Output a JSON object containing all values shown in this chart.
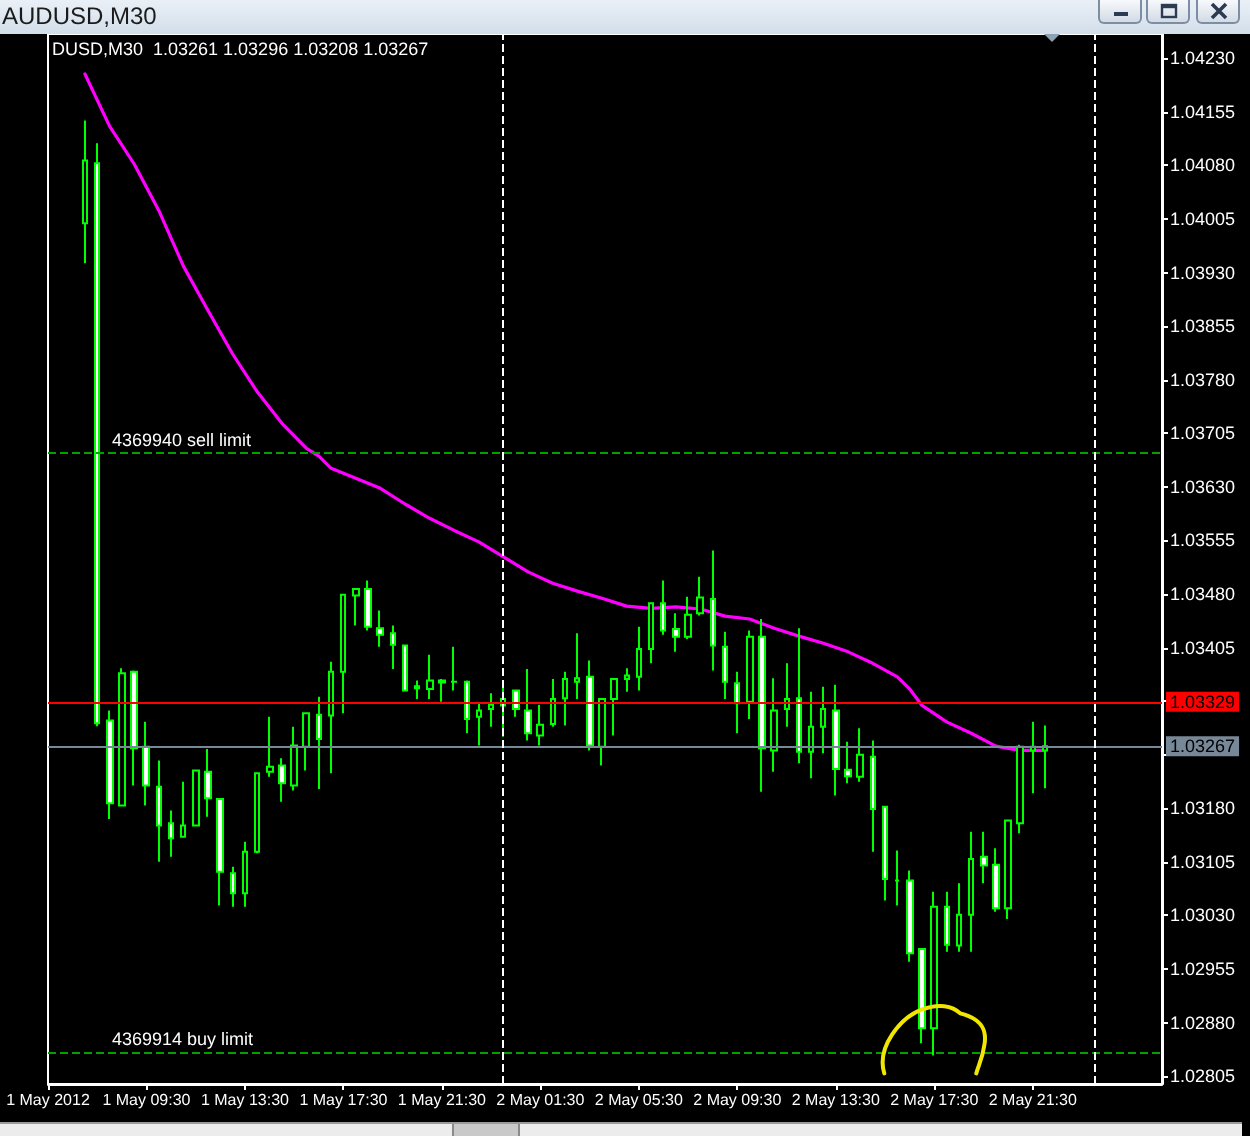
{
  "chart_data": {
    "type": "candlestick",
    "title": "AUDUSD,M30",
    "subtitle": "DUSD,M30  1.03261 1.03296 1.03208 1.03267",
    "color": "#00ff00",
    "x": [
      "2012-05-01T07:00",
      "2012-05-01T07:30",
      "2012-05-01T08:00",
      "2012-05-01T08:30",
      "2012-05-01T09:00",
      "2012-05-01T09:30",
      "2012-05-01T10:00",
      "2012-05-01T10:30",
      "2012-05-01T11:00",
      "2012-05-01T11:30",
      "2012-05-01T12:00",
      "2012-05-01T12:30",
      "2012-05-01T13:00",
      "2012-05-01T13:30",
      "2012-05-01T14:00",
      "2012-05-01T14:30",
      "2012-05-01T15:00",
      "2012-05-01T15:30",
      "2012-05-01T16:00",
      "2012-05-01T16:30",
      "2012-05-01T17:00",
      "2012-05-01T17:30",
      "2012-05-01T18:00",
      "2012-05-01T18:30",
      "2012-05-01T19:00",
      "2012-05-01T19:30",
      "2012-05-01T20:00",
      "2012-05-01T20:30",
      "2012-05-01T21:00",
      "2012-05-01T21:30",
      "2012-05-01T22:00",
      "2012-05-01T22:30",
      "2012-05-01T23:00",
      "2012-05-01T23:30",
      "2012-05-02T00:00",
      "2012-05-02T00:30",
      "2012-05-02T01:00",
      "2012-05-02T01:30",
      "2012-05-02T02:00",
      "2012-05-02T02:30",
      "2012-05-02T03:00",
      "2012-05-02T03:30",
      "2012-05-02T04:00",
      "2012-05-02T04:30",
      "2012-05-02T05:00",
      "2012-05-02T05:30",
      "2012-05-02T06:00",
      "2012-05-02T06:30",
      "2012-05-02T07:00",
      "2012-05-02T07:30",
      "2012-05-02T08:00",
      "2012-05-02T08:30",
      "2012-05-02T09:00",
      "2012-05-02T09:30",
      "2012-05-02T10:00",
      "2012-05-02T10:30",
      "2012-05-02T11:00",
      "2012-05-02T11:30",
      "2012-05-02T12:00",
      "2012-05-02T12:30",
      "2012-05-02T13:00",
      "2012-05-02T13:30",
      "2012-05-02T14:00",
      "2012-05-02T14:30",
      "2012-05-02T15:00",
      "2012-05-02T15:30",
      "2012-05-02T16:00",
      "2012-05-02T16:30",
      "2012-05-02T17:00",
      "2012-05-02T17:30",
      "2012-05-02T18:00",
      "2012-05-02T18:30",
      "2012-05-02T19:00",
      "2012-05-02T19:30",
      "2012-05-02T20:00",
      "2012-05-02T20:30",
      "2012-05-02T21:00",
      "2012-05-02T21:30",
      "2012-05-02T22:00"
    ],
    "ohlc": [
      [
        1.03999,
        1.04143,
        1.03943,
        1.04087
      ],
      [
        1.04083,
        1.04111,
        1.03295,
        1.03299
      ],
      [
        1.03303,
        1.03317,
        1.03165,
        1.03187
      ],
      [
        1.03184,
        1.03376,
        1.03184,
        1.03369
      ],
      [
        1.03371,
        1.03373,
        1.03212,
        1.03264
      ],
      [
        1.03266,
        1.03301,
        1.03184,
        1.03212
      ],
      [
        1.0321,
        1.03247,
        1.03105,
        1.03156
      ],
      [
        1.03159,
        1.03177,
        1.03112,
        1.03138
      ],
      [
        1.0314,
        1.03217,
        1.0314,
        1.03156
      ],
      [
        1.03156,
        1.03233,
        1.03156,
        1.03233
      ],
      [
        1.03231,
        1.03263,
        1.03168,
        1.03194
      ],
      [
        1.03193,
        1.03193,
        1.03044,
        1.03091
      ],
      [
        1.03089,
        1.03098,
        1.03042,
        1.03061
      ],
      [
        1.03061,
        1.03133,
        1.03042,
        1.03119
      ],
      [
        1.03119,
        1.03229,
        1.03117,
        1.03229
      ],
      [
        1.03231,
        1.03308,
        1.03224,
        1.03238
      ],
      [
        1.0324,
        1.0325,
        1.03189,
        1.03215
      ],
      [
        1.03212,
        1.03294,
        1.03205,
        1.03268
      ],
      [
        1.03266,
        1.03313,
        1.03233,
        1.03313
      ],
      [
        1.03311,
        1.03336,
        1.03207,
        1.03277
      ],
      [
        1.0331,
        1.03385,
        1.03229,
        1.03371
      ],
      [
        1.03371,
        1.03479,
        1.03313,
        1.03479
      ],
      [
        1.03478,
        1.03487,
        1.03436,
        1.03487
      ],
      [
        1.03487,
        1.03499,
        1.03429,
        1.03434
      ],
      [
        1.03432,
        1.03457,
        1.03406,
        1.03423
      ],
      [
        1.03425,
        1.03436,
        1.03375,
        1.03409
      ],
      [
        1.03408,
        1.03408,
        1.03345,
        1.03345
      ],
      [
        1.03348,
        1.03359,
        1.03333,
        1.03351
      ],
      [
        1.03347,
        1.03395,
        1.03333,
        1.03359
      ],
      [
        1.03356,
        1.03361,
        1.03329,
        1.03359
      ],
      [
        1.03357,
        1.03406,
        1.03345,
        1.03357
      ],
      [
        1.03357,
        1.03359,
        1.03285,
        1.03305
      ],
      [
        1.03308,
        1.03327,
        1.03268,
        1.03317
      ],
      [
        1.03319,
        1.03341,
        1.03294,
        1.03325
      ],
      [
        1.03324,
        1.03352,
        1.0328,
        1.03333
      ],
      [
        1.03345,
        1.03345,
        1.03308,
        1.03319
      ],
      [
        1.03317,
        1.03375,
        1.03275,
        1.03285
      ],
      [
        1.03282,
        1.03325,
        1.03268,
        1.03297
      ],
      [
        1.03298,
        1.03361,
        1.03294,
        1.03333
      ],
      [
        1.03334,
        1.03371,
        1.03296,
        1.03361
      ],
      [
        1.03357,
        1.03425,
        1.03333,
        1.03362
      ],
      [
        1.03364,
        1.03387,
        1.03261,
        1.03268
      ],
      [
        1.03266,
        1.03333,
        1.0324,
        1.03333
      ],
      [
        1.03333,
        1.03361,
        1.03282,
        1.03361
      ],
      [
        1.03361,
        1.03376,
        1.03343,
        1.03366
      ],
      [
        1.03364,
        1.03434,
        1.03345,
        1.03403
      ],
      [
        1.03403,
        1.03467,
        1.03383,
        1.03467
      ],
      [
        1.03467,
        1.03499,
        1.03423,
        1.03429
      ],
      [
        1.03431,
        1.03453,
        1.03399,
        1.0342
      ],
      [
        1.0342,
        1.03476,
        1.03417,
        1.03451
      ],
      [
        1.03453,
        1.03504,
        1.0345,
        1.03475
      ],
      [
        1.03473,
        1.03541,
        1.03373,
        1.03408
      ],
      [
        1.03406,
        1.03427,
        1.03333,
        1.03357
      ],
      [
        1.03355,
        1.03371,
        1.03285,
        1.03327
      ],
      [
        1.03329,
        1.03429,
        1.03305,
        1.0342
      ],
      [
        1.0342,
        1.03445,
        1.03203,
        1.03264
      ],
      [
        1.03261,
        1.03362,
        1.03231,
        1.03317
      ],
      [
        1.03319,
        1.03383,
        1.03294,
        1.03333
      ],
      [
        1.03334,
        1.03432,
        1.03243,
        1.03259
      ],
      [
        1.03259,
        1.03343,
        1.03222,
        1.03294
      ],
      [
        1.03294,
        1.0335,
        1.03257,
        1.03319
      ],
      [
        1.03317,
        1.03353,
        1.03198,
        1.03235
      ],
      [
        1.03234,
        1.03273,
        1.03215,
        1.03225
      ],
      [
        1.03224,
        1.03292,
        1.03217,
        1.03255
      ],
      [
        1.03252,
        1.03275,
        1.03119,
        1.03179
      ],
      [
        1.03182,
        1.03182,
        1.03051,
        1.03081
      ],
      [
        1.03079,
        1.03121,
        1.03044,
        1.03079
      ],
      [
        1.03079,
        1.03093,
        1.02965,
        1.02977
      ],
      [
        1.02983,
        1.02983,
        1.02851,
        1.02872
      ],
      [
        1.02872,
        1.03063,
        1.02834,
        1.03042
      ],
      [
        1.03042,
        1.03063,
        1.02979,
        1.02989
      ],
      [
        1.02988,
        1.03075,
        1.02979,
        1.03031
      ],
      [
        1.03031,
        1.03147,
        1.02979,
        1.03109
      ],
      [
        1.03112,
        1.03147,
        1.03075,
        1.031
      ],
      [
        1.03101,
        1.03124,
        1.03035,
        1.0304
      ],
      [
        1.0304,
        1.03163,
        1.03025,
        1.03163
      ],
      [
        1.03159,
        1.03269,
        1.03145,
        1.03266
      ],
      [
        1.03261,
        1.03301,
        1.03201,
        1.03266
      ],
      [
        1.03261,
        1.03296,
        1.03208,
        1.03267
      ]
    ],
    "series": [
      {
        "type": "line",
        "color": "#ff00ff",
        "x": [
          "2012-05-01T07:00",
          "2012-05-01T08:00",
          "2012-05-01T09:00",
          "2012-05-01T10:00",
          "2012-05-01T11:00",
          "2012-05-01T12:00",
          "2012-05-01T13:00",
          "2012-05-01T14:00",
          "2012-05-01T15:00",
          "2012-05-01T16:00",
          "2012-05-01T16:30",
          "2012-05-01T17:00",
          "2012-05-01T18:00",
          "2012-05-01T19:00",
          "2012-05-01T20:00",
          "2012-05-01T21:00",
          "2012-05-01T22:00",
          "2012-05-01T23:00",
          "2012-05-02T00:00",
          "2012-05-02T01:00",
          "2012-05-02T02:00",
          "2012-05-02T03:00",
          "2012-05-02T04:00",
          "2012-05-02T05:00",
          "2012-05-02T06:00",
          "2012-05-02T07:00",
          "2012-05-02T08:00",
          "2012-05-02T09:00",
          "2012-05-02T10:00",
          "2012-05-02T11:00",
          "2012-05-02T12:00",
          "2012-05-02T13:00",
          "2012-05-02T14:00",
          "2012-05-02T15:00",
          "2012-05-02T16:00",
          "2012-05-02T16:30",
          "2012-05-02T17:00",
          "2012-05-02T18:00",
          "2012-05-02T19:00",
          "2012-05-02T20:00",
          "2012-05-02T21:00",
          "2012-05-02T22:00"
        ],
        "values": [
          1.04208,
          1.04135,
          1.04082,
          1.04017,
          1.03939,
          1.03877,
          1.03816,
          1.03763,
          1.03719,
          1.03684,
          1.03673,
          1.03656,
          1.03642,
          1.03628,
          1.03606,
          1.03586,
          1.03569,
          1.03553,
          1.03532,
          1.03511,
          1.03495,
          1.03484,
          1.03474,
          1.03463,
          1.0346,
          1.03462,
          1.03459,
          1.03449,
          1.03445,
          1.03432,
          1.03421,
          1.03411,
          1.03399,
          1.03383,
          1.03364,
          1.03347,
          1.03324,
          1.03301,
          1.03285,
          1.03267,
          1.03261,
          1.03261
        ]
      }
    ],
    "marker": "none",
    "xlim": [
      "2012-05-01T05:30",
      "2012-05-03T02:45"
    ],
    "xticks": [
      {
        "value": "2012-05-01T05:30",
        "label": "1 May 2012"
      },
      {
        "value": "2012-05-01T09:30",
        "label": "1 May 09:30"
      },
      {
        "value": "2012-05-01T13:30",
        "label": "1 May 13:30"
      },
      {
        "value": "2012-05-01T17:30",
        "label": "1 May 17:30"
      },
      {
        "value": "2012-05-01T21:30",
        "label": "1 May 21:30"
      },
      {
        "value": "2012-05-02T01:30",
        "label": "2 May 01:30"
      },
      {
        "value": "2012-05-02T05:30",
        "label": "2 May 05:30"
      },
      {
        "value": "2012-05-02T09:30",
        "label": "2 May 09:30"
      },
      {
        "value": "2012-05-02T13:30",
        "label": "2 May 13:30"
      },
      {
        "value": "2012-05-02T17:30",
        "label": "2 May 17:30"
      },
      {
        "value": "2012-05-02T21:30",
        "label": "2 May 21:30"
      }
    ],
    "ylim": [
      1.02794,
      1.04264
    ],
    "yticks": [
      {
        "value": 1.0423,
        "label": "1.04230"
      },
      1.04155,
      {
        "value": 1.0408,
        "label": "1.04080"
      },
      1.04005,
      {
        "value": 1.0393,
        "label": "1.03930"
      },
      1.03855,
      {
        "value": 1.0378,
        "label": "1.03780"
      },
      1.03705,
      {
        "value": 1.0363,
        "label": "1.03630"
      },
      1.03555,
      {
        "value": 1.0348,
        "label": "1.03480"
      },
      1.03405,
      {
        "value": 1.0333,
        "label": null
      },
      {
        "value": 1.03255,
        "label": null
      },
      {
        "value": 1.0318,
        "label": "1.03180"
      },
      1.03105,
      {
        "value": 1.0303,
        "label": "1.03030"
      },
      1.02955,
      {
        "value": 1.0288,
        "label": "1.02880"
      },
      1.02805
    ],
    "ref_lines": [
      {
        "axis": "y",
        "value": 1.03677,
        "label": "4369940 sell limit",
        "color": "#00a000",
        "line_style": "dashed"
      },
      {
        "axis": "y",
        "value": 1.02839,
        "label": "4369914 buy limit",
        "color": "#00a000",
        "line_style": "dashed"
      },
      {
        "axis": "y",
        "value": 1.03329,
        "label": "1.03329",
        "color": "#ff0000"
      },
      {
        "axis": "y",
        "value": 1.03267,
        "label": "1.03267",
        "color": "#778899"
      },
      {
        "axis": "x",
        "value": "2012-05-02T00:00",
        "label": null,
        "color": "#ffffff",
        "line_style": "dashed"
      },
      {
        "axis": "x",
        "value": "2012-05-03T00:00",
        "label": null,
        "color": "#ffffff",
        "line_style": "dashed"
      }
    ]
  }
}
